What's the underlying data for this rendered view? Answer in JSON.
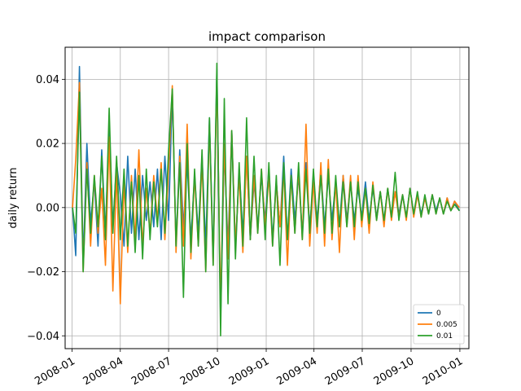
{
  "chart_data": {
    "type": "line",
    "title": "impact comparison",
    "xlabel": "",
    "ylabel": "daily return",
    "xlim": [
      "2007-12-19",
      "2010-01-18"
    ],
    "ylim": [
      -0.044,
      0.05
    ],
    "x_ticks": [
      "2008-01",
      "2008-04",
      "2008-07",
      "2008-10",
      "2009-01",
      "2009-04",
      "2009-07",
      "2009-10",
      "2010-01"
    ],
    "y_ticks": [
      -0.04,
      -0.02,
      0.0,
      0.02,
      0.04
    ],
    "y_tick_labels": [
      "−0.04",
      "−0.02",
      "0.00",
      "0.02",
      "0.04"
    ],
    "grid": true,
    "legend_position": "lower-right",
    "x": [
      "2008-01-02",
      "2008-01-08",
      "2008-01-15",
      "2008-01-22",
      "2008-01-29",
      "2008-02-05",
      "2008-02-12",
      "2008-02-19",
      "2008-02-26",
      "2008-03-04",
      "2008-03-11",
      "2008-03-18",
      "2008-03-25",
      "2008-04-01",
      "2008-04-08",
      "2008-04-15",
      "2008-04-22",
      "2008-04-29",
      "2008-05-06",
      "2008-05-13",
      "2008-05-20",
      "2008-05-27",
      "2008-06-03",
      "2008-06-10",
      "2008-06-17",
      "2008-06-24",
      "2008-07-01",
      "2008-07-08",
      "2008-07-15",
      "2008-07-22",
      "2008-07-29",
      "2008-08-05",
      "2008-08-12",
      "2008-08-19",
      "2008-08-26",
      "2008-09-02",
      "2008-09-09",
      "2008-09-16",
      "2008-09-23",
      "2008-09-30",
      "2008-10-07",
      "2008-10-14",
      "2008-10-21",
      "2008-10-28",
      "2008-11-04",
      "2008-11-11",
      "2008-11-18",
      "2008-11-25",
      "2008-12-02",
      "2008-12-09",
      "2008-12-16",
      "2008-12-23",
      "2008-12-30",
      "2009-01-06",
      "2009-01-13",
      "2009-01-20",
      "2009-01-27",
      "2009-02-03",
      "2009-02-10",
      "2009-02-17",
      "2009-02-24",
      "2009-03-03",
      "2009-03-10",
      "2009-03-17",
      "2009-03-24",
      "2009-03-31",
      "2009-04-07",
      "2009-04-14",
      "2009-04-21",
      "2009-04-28",
      "2009-05-05",
      "2009-05-12",
      "2009-05-19",
      "2009-05-26",
      "2009-06-02",
      "2009-06-09",
      "2009-06-16",
      "2009-06-23",
      "2009-06-30",
      "2009-07-07",
      "2009-07-14",
      "2009-07-21",
      "2009-07-28",
      "2009-08-04",
      "2009-08-11",
      "2009-08-18",
      "2009-08-25",
      "2009-09-01",
      "2009-09-08",
      "2009-09-15",
      "2009-09-22",
      "2009-09-29",
      "2009-10-06",
      "2009-10-13",
      "2009-10-20",
      "2009-10-27",
      "2009-11-03",
      "2009-11-10",
      "2009-11-17",
      "2009-11-24",
      "2009-12-01",
      "2009-12-08",
      "2009-12-15",
      "2009-12-22",
      "2009-12-31"
    ],
    "series": [
      {
        "name": "0",
        "color": "#1f77b4",
        "values": [
          0.0,
          -0.015,
          0.044,
          -0.017,
          0.02,
          -0.005,
          0.008,
          -0.012,
          0.018,
          -0.008,
          0.026,
          -0.006,
          0.014,
          0.004,
          -0.012,
          0.016,
          -0.008,
          0.012,
          -0.01,
          0.01,
          -0.004,
          0.008,
          -0.006,
          0.012,
          -0.01,
          0.016,
          -0.004,
          0.036,
          -0.012,
          0.018,
          -0.006,
          0.014,
          -0.01,
          0.01,
          -0.008,
          0.016,
          -0.012,
          0.028,
          -0.016,
          0.043,
          -0.035,
          0.018,
          -0.012,
          0.024,
          -0.013,
          0.012,
          -0.008,
          0.016,
          -0.01,
          0.008,
          -0.006,
          0.01,
          -0.004,
          0.012,
          -0.01,
          0.008,
          -0.006,
          0.016,
          -0.01,
          0.012,
          -0.004,
          0.01,
          -0.008,
          0.014,
          -0.006,
          0.008,
          -0.004,
          0.012,
          -0.006,
          0.01,
          -0.004,
          0.008,
          -0.006,
          0.01,
          -0.004,
          0.008,
          -0.004,
          0.006,
          -0.003,
          0.008,
          -0.004,
          0.006,
          -0.003,
          0.005,
          -0.004,
          0.006,
          -0.003,
          0.005,
          -0.002,
          0.004,
          -0.003,
          0.006,
          -0.002,
          0.004,
          -0.002,
          0.003,
          -0.002,
          0.004,
          -0.001,
          0.003,
          -0.002,
          0.003,
          -0.001,
          0.002,
          -0.001
        ]
      },
      {
        "name": "0.005",
        "color": "#ff7f0e",
        "values": [
          0.0,
          0.015,
          0.039,
          -0.02,
          0.014,
          -0.012,
          0.01,
          -0.008,
          0.006,
          -0.018,
          0.022,
          -0.026,
          0.012,
          -0.03,
          0.008,
          -0.014,
          0.01,
          -0.01,
          0.018,
          -0.012,
          0.006,
          -0.008,
          0.01,
          -0.004,
          0.014,
          -0.01,
          0.012,
          0.038,
          -0.014,
          0.016,
          -0.012,
          0.026,
          -0.016,
          0.01,
          -0.012,
          0.014,
          -0.02,
          0.026,
          -0.018,
          0.04,
          -0.03,
          0.02,
          -0.016,
          0.024,
          -0.012,
          0.01,
          -0.014,
          0.016,
          -0.01,
          0.01,
          -0.008,
          0.012,
          -0.006,
          0.01,
          -0.012,
          0.008,
          -0.006,
          0.012,
          -0.018,
          0.01,
          -0.008,
          0.012,
          -0.01,
          0.026,
          -0.012,
          0.008,
          -0.008,
          0.014,
          -0.012,
          0.015,
          -0.01,
          0.008,
          -0.014,
          0.01,
          -0.006,
          0.01,
          -0.01,
          0.01,
          -0.006,
          0.006,
          -0.008,
          0.008,
          -0.004,
          0.005,
          -0.006,
          0.006,
          -0.004,
          0.005,
          -0.003,
          0.004,
          -0.004,
          0.006,
          -0.003,
          0.004,
          -0.003,
          0.003,
          -0.002,
          0.004,
          -0.002,
          0.003,
          -0.002,
          0.003,
          -0.001,
          0.002,
          0.0
        ]
      },
      {
        "name": "0.01",
        "color": "#2ca02c",
        "values": [
          0.0,
          -0.008,
          0.036,
          -0.02,
          0.012,
          -0.008,
          0.01,
          -0.006,
          0.016,
          -0.01,
          0.031,
          -0.008,
          0.016,
          -0.01,
          0.012,
          -0.012,
          0.008,
          -0.014,
          0.01,
          -0.016,
          0.012,
          -0.01,
          0.008,
          -0.006,
          0.012,
          -0.008,
          0.018,
          0.037,
          -0.012,
          0.014,
          -0.028,
          0.02,
          -0.014,
          0.012,
          -0.012,
          0.018,
          -0.02,
          0.028,
          -0.018,
          0.045,
          -0.04,
          0.034,
          -0.03,
          0.024,
          -0.016,
          0.014,
          -0.012,
          0.028,
          -0.01,
          0.016,
          -0.008,
          0.012,
          -0.01,
          0.014,
          -0.012,
          0.01,
          -0.018,
          0.014,
          -0.01,
          0.01,
          -0.008,
          0.014,
          -0.01,
          0.012,
          -0.008,
          0.012,
          -0.006,
          0.01,
          -0.008,
          0.012,
          -0.008,
          0.01,
          -0.006,
          0.008,
          -0.006,
          0.008,
          -0.006,
          0.008,
          -0.004,
          0.006,
          -0.005,
          0.007,
          -0.004,
          0.005,
          -0.004,
          0.006,
          -0.003,
          0.011,
          -0.004,
          0.004,
          -0.003,
          0.006,
          -0.002,
          0.005,
          -0.003,
          0.004,
          -0.002,
          0.004,
          -0.002,
          0.003,
          -0.002,
          0.002,
          -0.001,
          0.001,
          -0.001
        ]
      }
    ]
  }
}
